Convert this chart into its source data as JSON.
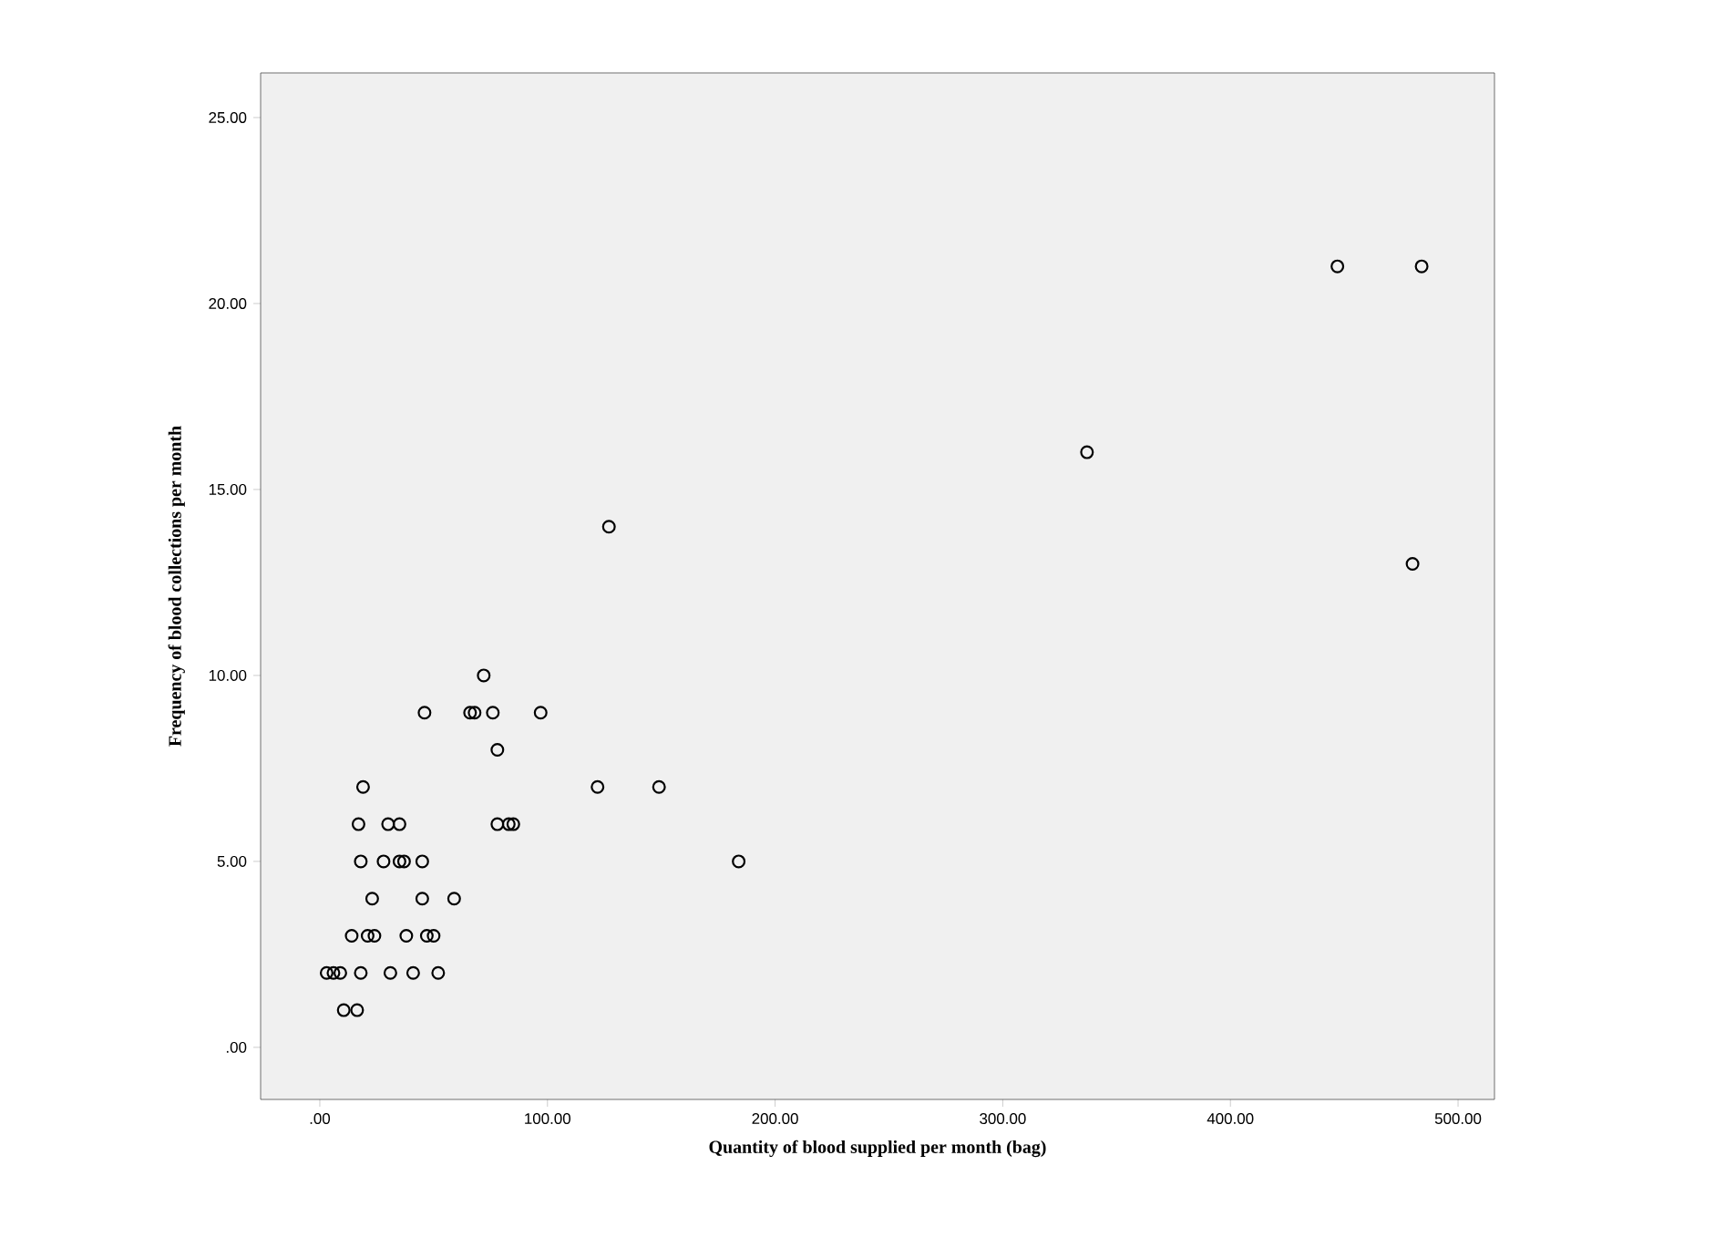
{
  "chart_data": {
    "type": "scatter",
    "xlabel": "Quantity of blood supplied per month (bag)",
    "ylabel": "Frequency of blood collections per month",
    "marker": "circle",
    "xlim": [
      -26,
      516
    ],
    "ylim": [
      -1.4,
      26.2
    ],
    "xticks": [
      {
        "value": 0,
        "label": ".00"
      },
      {
        "value": 100,
        "label": "100.00"
      },
      {
        "value": 200,
        "label": "200.00"
      },
      {
        "value": 300,
        "label": "300.00"
      },
      {
        "value": 400,
        "label": "400.00"
      },
      {
        "value": 500,
        "label": "500.00"
      }
    ],
    "yticks": [
      {
        "value": 0,
        "label": ".00"
      },
      {
        "value": 5,
        "label": "5.00"
      },
      {
        "value": 10,
        "label": "10.00"
      },
      {
        "value": 15,
        "label": "15.00"
      },
      {
        "value": 20,
        "label": "20.00"
      },
      {
        "value": 25,
        "label": "25.00"
      }
    ],
    "series": [
      {
        "color": "#000000",
        "x": [
          447,
          484,
          337,
          127,
          480,
          72,
          46,
          66,
          68,
          76,
          97,
          78,
          19,
          122,
          149,
          17,
          30,
          35,
          78,
          83,
          85,
          18,
          28,
          35,
          37,
          45,
          184,
          23,
          45,
          59,
          14,
          21,
          24,
          38,
          47,
          50,
          3,
          6,
          9,
          18,
          31,
          41,
          52,
          10.5,
          16.4
        ],
        "values": [
          21,
          21,
          16,
          14,
          13,
          10,
          9,
          9,
          9,
          9,
          9,
          8,
          7,
          7,
          7,
          6,
          6,
          6,
          6,
          6,
          6,
          5,
          5,
          5,
          5,
          5,
          5,
          4,
          4,
          4,
          3,
          3,
          3,
          3,
          3,
          3,
          2,
          2,
          2,
          2,
          2,
          2,
          2,
          1,
          1
        ]
      }
    ]
  }
}
